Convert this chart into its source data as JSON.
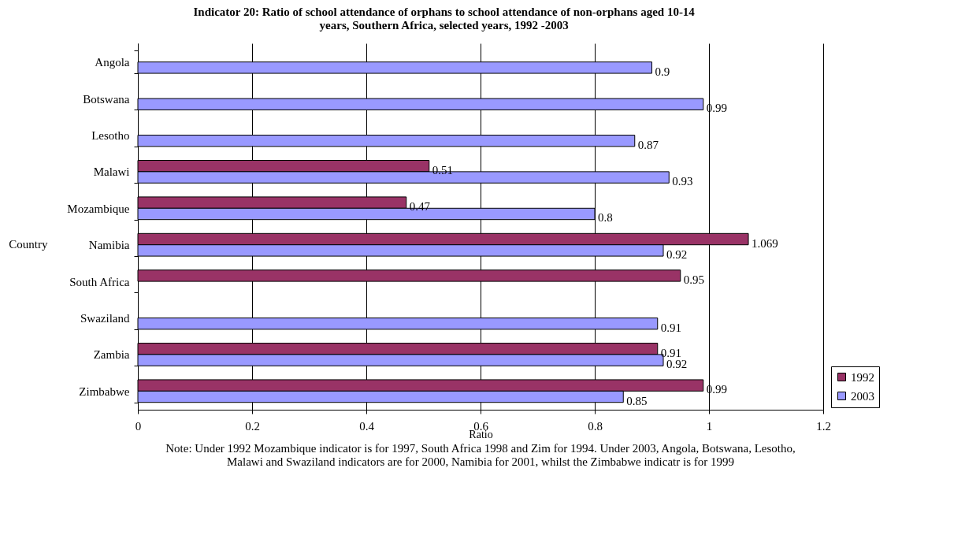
{
  "chart_data": {
    "type": "bar",
    "orientation": "horizontal",
    "title": "Indicator 20: Ratio of school attendance of orphans to school attendance of non-orphans aged 10-14 years, Southern Africa, selected years, 1992 -2003",
    "xlabel": "Ratio",
    "ylabel": "Country",
    "categories": [
      "Angola",
      "Botswana",
      "Lesotho",
      "Malawi",
      "Mozambique",
      "Namibia",
      "South Africa",
      "Swaziland",
      "Zambia",
      "Zimbabwe"
    ],
    "series": [
      {
        "name": "1992",
        "color": "#993366",
        "values": [
          null,
          null,
          null,
          0.51,
          0.47,
          1.069,
          0.95,
          null,
          0.91,
          0.99
        ]
      },
      {
        "name": "2003",
        "color": "#9999ff",
        "values": [
          0.9,
          0.99,
          0.87,
          0.93,
          0.8,
          0.92,
          null,
          0.91,
          0.92,
          0.85
        ]
      }
    ],
    "xlim": [
      0,
      1.2
    ],
    "xticks": [
      0,
      0.2,
      0.4,
      0.6,
      0.8,
      1,
      1.2
    ],
    "grid": "x",
    "legend": "right",
    "data_labels": true,
    "annotations": [
      "Note: Under 1992 Mozambique indicator is for 1997, South Africa 1998 and  Zim for 1994. Under 2003, Angola,  Botswana, Lesotho, Malawi and Swaziland indicators are for 2000, Namibia for 2001,  whilst the  Zimbabwe indicatr is for 1999"
    ]
  }
}
